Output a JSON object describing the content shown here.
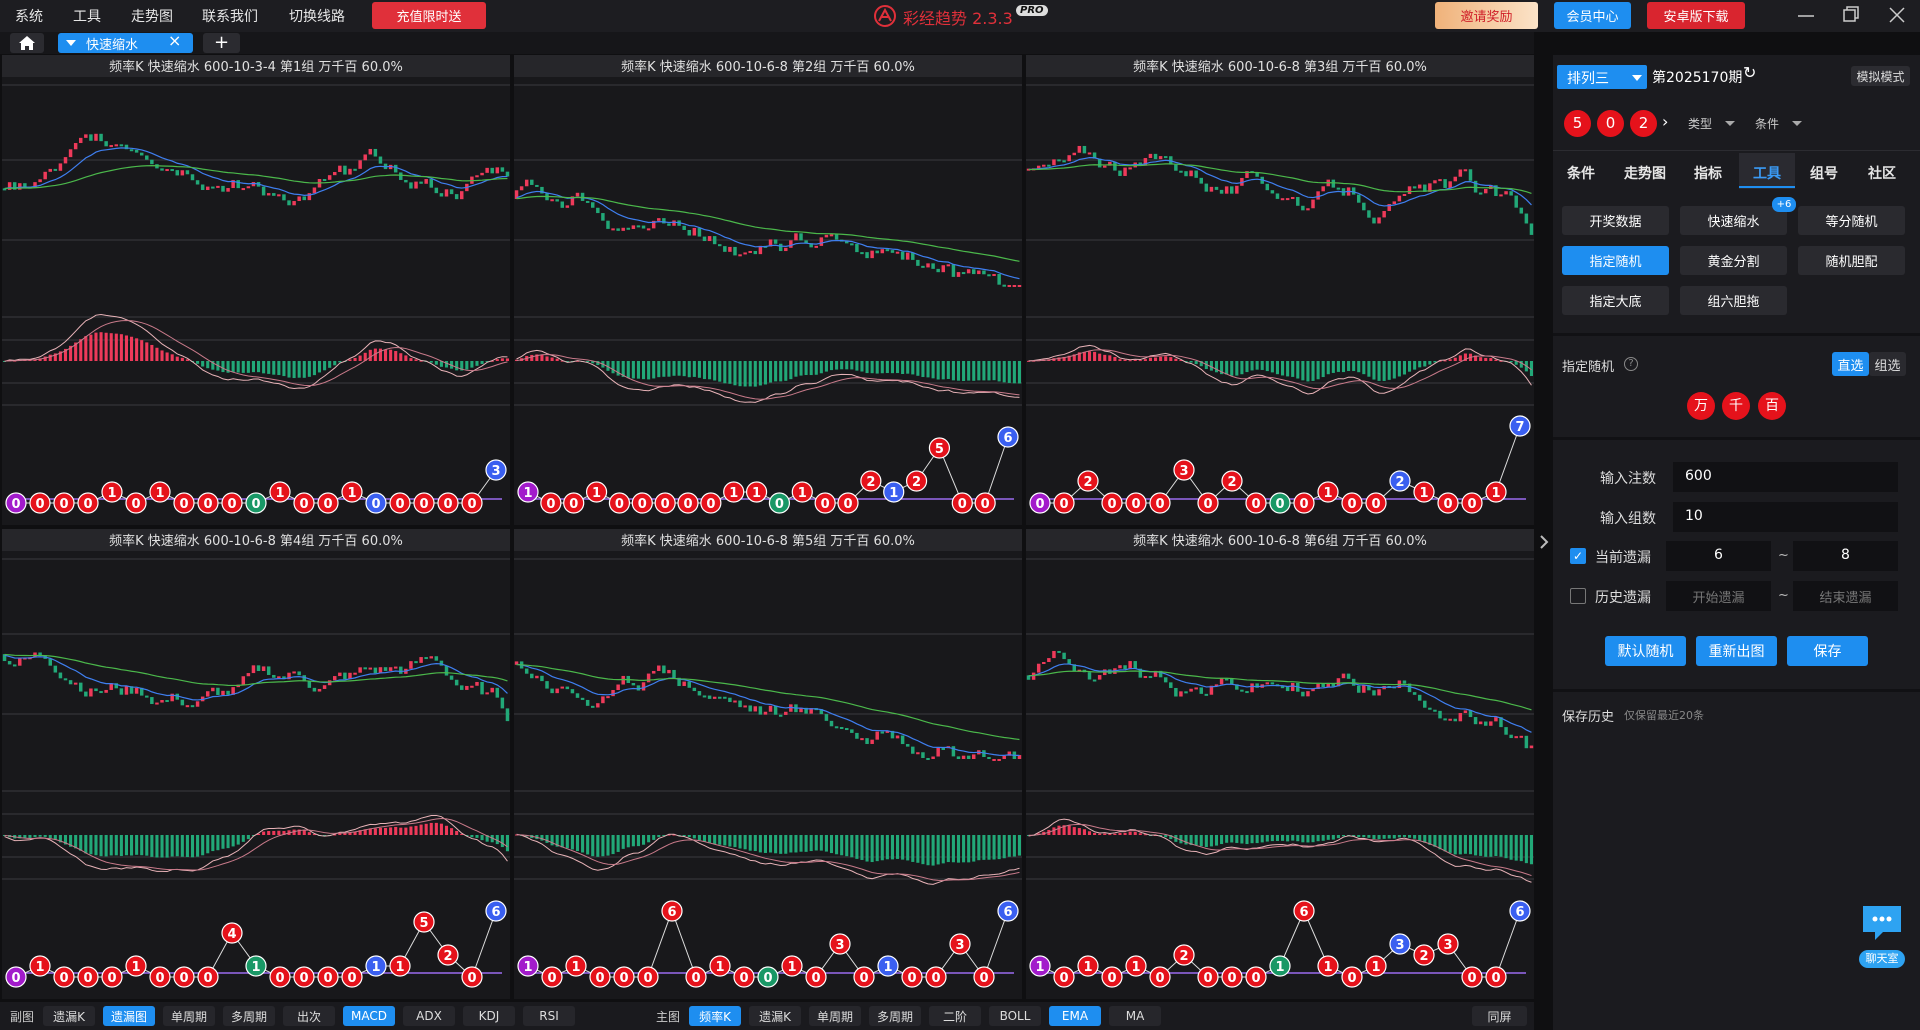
{
  "menu": [
    "系统",
    "工具",
    "走势图",
    "联系我们",
    "切换线路"
  ],
  "promo": "充值限时送",
  "app": {
    "name": "彩经趋势 2.3.3",
    "badge": "PRO"
  },
  "top_buttons": [
    "邀请奖励",
    "会员中心",
    "安卓版下载"
  ],
  "tab": "快速缩水",
  "panels": [
    {
      "title": "频率K 快速缩水 600-10-3-4 第1组 万千百 60.0%",
      "badges": [
        0,
        0,
        0,
        0,
        1,
        0,
        1,
        0,
        0,
        0,
        0,
        1,
        0,
        0,
        1,
        0,
        0,
        0,
        0,
        0,
        3
      ],
      "badge_colors": [
        "#a21bcb",
        "#e5121b",
        "#e5121b",
        "#e5121b",
        "#e5121b",
        "#e5121b",
        "#e5121b",
        "#e5121b",
        "#e5121b",
        "#e5121b",
        "#199866",
        "#e5121b",
        "#e5121b",
        "#e5121b",
        "#e5121b",
        "#3a5ff0",
        "#e5121b",
        "#e5121b",
        "#e5121b",
        "#e5121b",
        "#3a5ff0"
      ]
    },
    {
      "title": "频率K 快速缩水 600-10-6-8 第2组 万千百 60.0%",
      "badges": [
        1,
        0,
        0,
        1,
        0,
        0,
        0,
        0,
        0,
        1,
        1,
        0,
        1,
        0,
        0,
        2,
        1,
        2,
        5,
        0,
        0,
        6
      ],
      "badge_colors": [
        "#a21bcb",
        "#e5121b",
        "#e5121b",
        "#e5121b",
        "#e5121b",
        "#e5121b",
        "#e5121b",
        "#e5121b",
        "#e5121b",
        "#e5121b",
        "#e5121b",
        "#199866",
        "#e5121b",
        "#e5121b",
        "#e5121b",
        "#e5121b",
        "#3a5ff0",
        "#e5121b",
        "#e5121b",
        "#e5121b",
        "#e5121b",
        "#3a5ff0"
      ]
    },
    {
      "title": "频率K 快速缩水 600-10-6-8 第3组 万千百 60.0%",
      "badges": [
        0,
        0,
        2,
        0,
        0,
        0,
        3,
        0,
        2,
        0,
        0,
        0,
        1,
        0,
        0,
        2,
        1,
        0,
        0,
        1,
        7
      ],
      "badge_colors": [
        "#a21bcb",
        "#e5121b",
        "#e5121b",
        "#e5121b",
        "#e5121b",
        "#e5121b",
        "#e5121b",
        "#e5121b",
        "#e5121b",
        "#e5121b",
        "#199866",
        "#e5121b",
        "#e5121b",
        "#e5121b",
        "#e5121b",
        "#3a5ff0",
        "#e5121b",
        "#e5121b",
        "#e5121b",
        "#e5121b",
        "#3a5ff0"
      ]
    },
    {
      "title": "频率K 快速缩水 600-10-6-8 第4组 万千百 60.0%",
      "badges": [
        0,
        1,
        0,
        0,
        0,
        1,
        0,
        0,
        0,
        4,
        1,
        0,
        0,
        0,
        0,
        1,
        1,
        5,
        2,
        0,
        6
      ],
      "badge_colors": [
        "#a21bcb",
        "#e5121b",
        "#e5121b",
        "#e5121b",
        "#e5121b",
        "#e5121b",
        "#e5121b",
        "#e5121b",
        "#e5121b",
        "#e5121b",
        "#199866",
        "#e5121b",
        "#e5121b",
        "#e5121b",
        "#e5121b",
        "#3a5ff0",
        "#e5121b",
        "#e5121b",
        "#e5121b",
        "#e5121b",
        "#3a5ff0"
      ]
    },
    {
      "title": "频率K 快速缩水 600-10-6-8 第5组 万千百 60.0%",
      "badges": [
        1,
        0,
        1,
        0,
        0,
        0,
        6,
        0,
        1,
        0,
        0,
        1,
        0,
        3,
        0,
        1,
        0,
        0,
        3,
        0,
        6
      ],
      "badge_colors": [
        "#a21bcb",
        "#e5121b",
        "#e5121b",
        "#e5121b",
        "#e5121b",
        "#e5121b",
        "#e5121b",
        "#e5121b",
        "#e5121b",
        "#e5121b",
        "#199866",
        "#e5121b",
        "#e5121b",
        "#e5121b",
        "#e5121b",
        "#3a5ff0",
        "#e5121b",
        "#e5121b",
        "#e5121b",
        "#e5121b",
        "#3a5ff0"
      ]
    },
    {
      "title": "频率K 快速缩水 600-10-6-8 第6组 万千百 60.0%",
      "badges": [
        1,
        0,
        1,
        0,
        1,
        0,
        2,
        0,
        0,
        0,
        1,
        6,
        1,
        0,
        1,
        3,
        2,
        3,
        0,
        0,
        6
      ],
      "badge_colors": [
        "#a21bcb",
        "#e5121b",
        "#e5121b",
        "#e5121b",
        "#e5121b",
        "#e5121b",
        "#e5121b",
        "#e5121b",
        "#e5121b",
        "#e5121b",
        "#199866",
        "#e5121b",
        "#e5121b",
        "#e5121b",
        "#e5121b",
        "#3a5ff0",
        "#e5121b",
        "#e5121b",
        "#e5121b",
        "#e5121b",
        "#3a5ff0"
      ]
    }
  ],
  "side": {
    "lottery": "排列三",
    "issue": "第2025170期",
    "mode": "模拟模式",
    "balls": [
      5,
      0,
      2
    ],
    "filters": [
      "类型",
      "条件"
    ],
    "tabs": [
      "条件",
      "走势图",
      "指标",
      "工具",
      "组号",
      "社区"
    ],
    "tools": [
      "开奖数据",
      "快速缩水",
      "等分随机",
      "指定随机",
      "黄金分割",
      "随机胆配",
      "指定大底",
      "组六胆拖"
    ],
    "tools_badge": "+6",
    "section": "指定随机",
    "modes": [
      "直选",
      "组选"
    ],
    "positions": [
      "万",
      "千",
      "百"
    ],
    "fields": {
      "count_label": "输入注数",
      "count": 600,
      "groups_label": "输入组数",
      "groups": 10,
      "cur_label": "当前遗漏",
      "cur_from": 6,
      "tilde": "~",
      "cur_to": 8,
      "hist_label": "历史遗漏",
      "hist_from": "开始遗漏",
      "hist_to": "结束遗漏"
    },
    "actions": [
      "默认随机",
      "重新出图",
      "保存"
    ],
    "history": "保存历史",
    "history_note": "仅保留最近20条"
  },
  "bottom": {
    "sub_label": "副图",
    "sub": [
      "遗漏K",
      "遗漏图",
      "单周期",
      "多周期",
      "出次",
      "MACD",
      "ADX",
      "KDJ",
      "RSI"
    ],
    "main_label": "主图",
    "main": [
      "频率K",
      "遗漏K",
      "单周期",
      "多周期",
      "二阶",
      "BOLL",
      "EMA",
      "MA"
    ],
    "same": "同屏"
  },
  "chat": "聊天室"
}
